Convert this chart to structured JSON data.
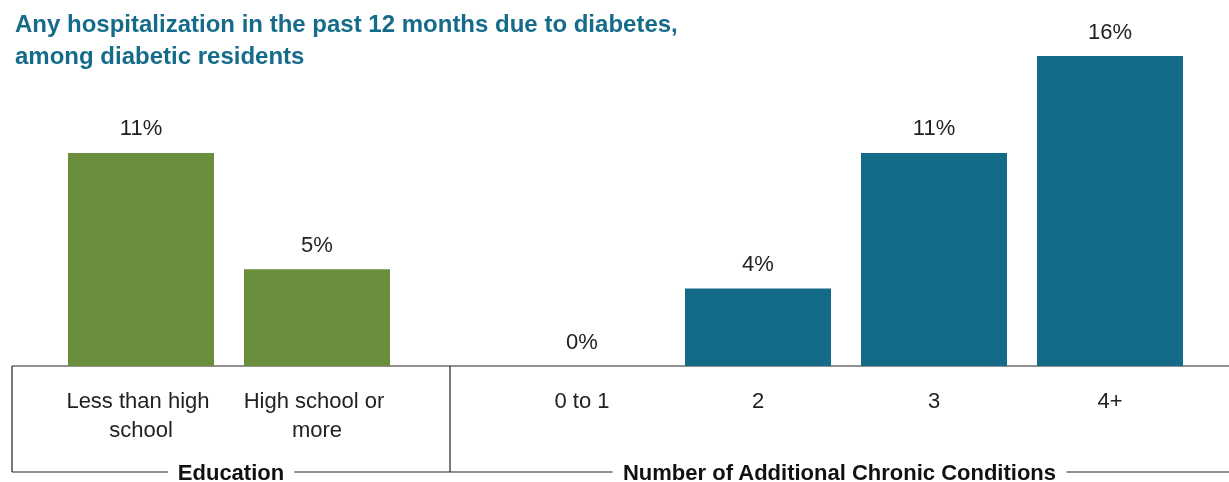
{
  "chart_data": [
    {
      "type": "bar",
      "title": "Any hospitalization in the past 12 months due to diabetes, among diabetic residents",
      "xlabel": "Education",
      "categories": [
        "Less than high school",
        "High school or more"
      ],
      "values": [
        11,
        5
      ],
      "colors": [
        "#6a8e3c",
        "#6a8e3c"
      ],
      "value_labels": [
        "11%",
        "5%"
      ]
    },
    {
      "type": "bar",
      "xlabel": "Number of Additional Chronic Conditions",
      "categories": [
        "0 to 1",
        "2",
        "3",
        "4+"
      ],
      "values": [
        0,
        4,
        11,
        16
      ],
      "colors": [
        "#136b88",
        "#136b88",
        "#136b88",
        "#136b88"
      ],
      "value_labels": [
        "0%",
        "4%",
        "11%",
        "16%"
      ]
    }
  ]
}
